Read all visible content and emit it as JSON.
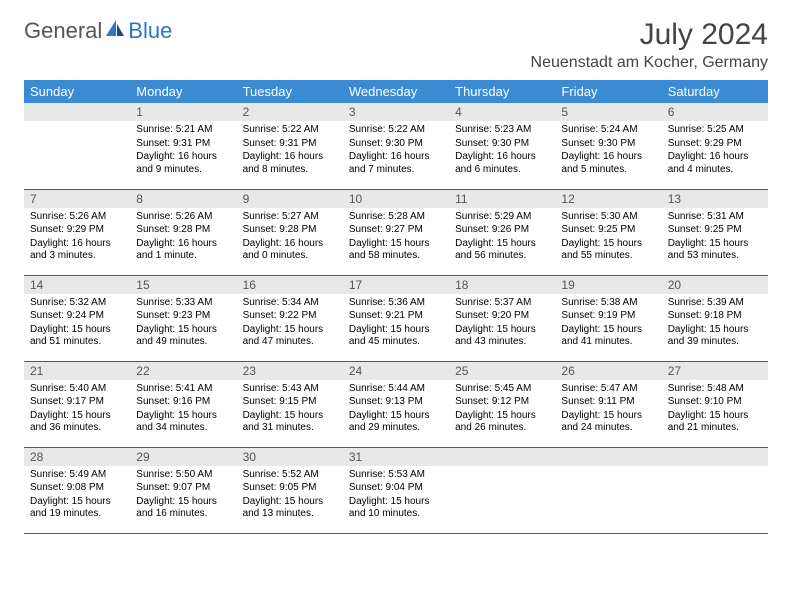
{
  "logo": {
    "text1": "General",
    "text2": "Blue"
  },
  "title": "July 2024",
  "location": "Neuenstadt am Kocher, Germany",
  "weekday_header_bg": "#3b8bd4",
  "weekday_header_fg": "#ffffff",
  "daynum_bg": "#e8e8e8",
  "row_divider_color": "#2f5f9e",
  "accent_color": "#2f75c1",
  "weekdays": [
    "Sunday",
    "Monday",
    "Tuesday",
    "Wednesday",
    "Thursday",
    "Friday",
    "Saturday"
  ],
  "weeks": [
    [
      {
        "num": "",
        "sunrise": "",
        "sunset": "",
        "daylight": ""
      },
      {
        "num": "1",
        "sunrise": "Sunrise: 5:21 AM",
        "sunset": "Sunset: 9:31 PM",
        "daylight": "Daylight: 16 hours and 9 minutes."
      },
      {
        "num": "2",
        "sunrise": "Sunrise: 5:22 AM",
        "sunset": "Sunset: 9:31 PM",
        "daylight": "Daylight: 16 hours and 8 minutes."
      },
      {
        "num": "3",
        "sunrise": "Sunrise: 5:22 AM",
        "sunset": "Sunset: 9:30 PM",
        "daylight": "Daylight: 16 hours and 7 minutes."
      },
      {
        "num": "4",
        "sunrise": "Sunrise: 5:23 AM",
        "sunset": "Sunset: 9:30 PM",
        "daylight": "Daylight: 16 hours and 6 minutes."
      },
      {
        "num": "5",
        "sunrise": "Sunrise: 5:24 AM",
        "sunset": "Sunset: 9:30 PM",
        "daylight": "Daylight: 16 hours and 5 minutes."
      },
      {
        "num": "6",
        "sunrise": "Sunrise: 5:25 AM",
        "sunset": "Sunset: 9:29 PM",
        "daylight": "Daylight: 16 hours and 4 minutes."
      }
    ],
    [
      {
        "num": "7",
        "sunrise": "Sunrise: 5:26 AM",
        "sunset": "Sunset: 9:29 PM",
        "daylight": "Daylight: 16 hours and 3 minutes."
      },
      {
        "num": "8",
        "sunrise": "Sunrise: 5:26 AM",
        "sunset": "Sunset: 9:28 PM",
        "daylight": "Daylight: 16 hours and 1 minute."
      },
      {
        "num": "9",
        "sunrise": "Sunrise: 5:27 AM",
        "sunset": "Sunset: 9:28 PM",
        "daylight": "Daylight: 16 hours and 0 minutes."
      },
      {
        "num": "10",
        "sunrise": "Sunrise: 5:28 AM",
        "sunset": "Sunset: 9:27 PM",
        "daylight": "Daylight: 15 hours and 58 minutes."
      },
      {
        "num": "11",
        "sunrise": "Sunrise: 5:29 AM",
        "sunset": "Sunset: 9:26 PM",
        "daylight": "Daylight: 15 hours and 56 minutes."
      },
      {
        "num": "12",
        "sunrise": "Sunrise: 5:30 AM",
        "sunset": "Sunset: 9:25 PM",
        "daylight": "Daylight: 15 hours and 55 minutes."
      },
      {
        "num": "13",
        "sunrise": "Sunrise: 5:31 AM",
        "sunset": "Sunset: 9:25 PM",
        "daylight": "Daylight: 15 hours and 53 minutes."
      }
    ],
    [
      {
        "num": "14",
        "sunrise": "Sunrise: 5:32 AM",
        "sunset": "Sunset: 9:24 PM",
        "daylight": "Daylight: 15 hours and 51 minutes."
      },
      {
        "num": "15",
        "sunrise": "Sunrise: 5:33 AM",
        "sunset": "Sunset: 9:23 PM",
        "daylight": "Daylight: 15 hours and 49 minutes."
      },
      {
        "num": "16",
        "sunrise": "Sunrise: 5:34 AM",
        "sunset": "Sunset: 9:22 PM",
        "daylight": "Daylight: 15 hours and 47 minutes."
      },
      {
        "num": "17",
        "sunrise": "Sunrise: 5:36 AM",
        "sunset": "Sunset: 9:21 PM",
        "daylight": "Daylight: 15 hours and 45 minutes."
      },
      {
        "num": "18",
        "sunrise": "Sunrise: 5:37 AM",
        "sunset": "Sunset: 9:20 PM",
        "daylight": "Daylight: 15 hours and 43 minutes."
      },
      {
        "num": "19",
        "sunrise": "Sunrise: 5:38 AM",
        "sunset": "Sunset: 9:19 PM",
        "daylight": "Daylight: 15 hours and 41 minutes."
      },
      {
        "num": "20",
        "sunrise": "Sunrise: 5:39 AM",
        "sunset": "Sunset: 9:18 PM",
        "daylight": "Daylight: 15 hours and 39 minutes."
      }
    ],
    [
      {
        "num": "21",
        "sunrise": "Sunrise: 5:40 AM",
        "sunset": "Sunset: 9:17 PM",
        "daylight": "Daylight: 15 hours and 36 minutes."
      },
      {
        "num": "22",
        "sunrise": "Sunrise: 5:41 AM",
        "sunset": "Sunset: 9:16 PM",
        "daylight": "Daylight: 15 hours and 34 minutes."
      },
      {
        "num": "23",
        "sunrise": "Sunrise: 5:43 AM",
        "sunset": "Sunset: 9:15 PM",
        "daylight": "Daylight: 15 hours and 31 minutes."
      },
      {
        "num": "24",
        "sunrise": "Sunrise: 5:44 AM",
        "sunset": "Sunset: 9:13 PM",
        "daylight": "Daylight: 15 hours and 29 minutes."
      },
      {
        "num": "25",
        "sunrise": "Sunrise: 5:45 AM",
        "sunset": "Sunset: 9:12 PM",
        "daylight": "Daylight: 15 hours and 26 minutes."
      },
      {
        "num": "26",
        "sunrise": "Sunrise: 5:47 AM",
        "sunset": "Sunset: 9:11 PM",
        "daylight": "Daylight: 15 hours and 24 minutes."
      },
      {
        "num": "27",
        "sunrise": "Sunrise: 5:48 AM",
        "sunset": "Sunset: 9:10 PM",
        "daylight": "Daylight: 15 hours and 21 minutes."
      }
    ],
    [
      {
        "num": "28",
        "sunrise": "Sunrise: 5:49 AM",
        "sunset": "Sunset: 9:08 PM",
        "daylight": "Daylight: 15 hours and 19 minutes."
      },
      {
        "num": "29",
        "sunrise": "Sunrise: 5:50 AM",
        "sunset": "Sunset: 9:07 PM",
        "daylight": "Daylight: 15 hours and 16 minutes."
      },
      {
        "num": "30",
        "sunrise": "Sunrise: 5:52 AM",
        "sunset": "Sunset: 9:05 PM",
        "daylight": "Daylight: 15 hours and 13 minutes."
      },
      {
        "num": "31",
        "sunrise": "Sunrise: 5:53 AM",
        "sunset": "Sunset: 9:04 PM",
        "daylight": "Daylight: 15 hours and 10 minutes."
      },
      {
        "num": "",
        "sunrise": "",
        "sunset": "",
        "daylight": ""
      },
      {
        "num": "",
        "sunrise": "",
        "sunset": "",
        "daylight": ""
      },
      {
        "num": "",
        "sunrise": "",
        "sunset": "",
        "daylight": ""
      }
    ]
  ]
}
